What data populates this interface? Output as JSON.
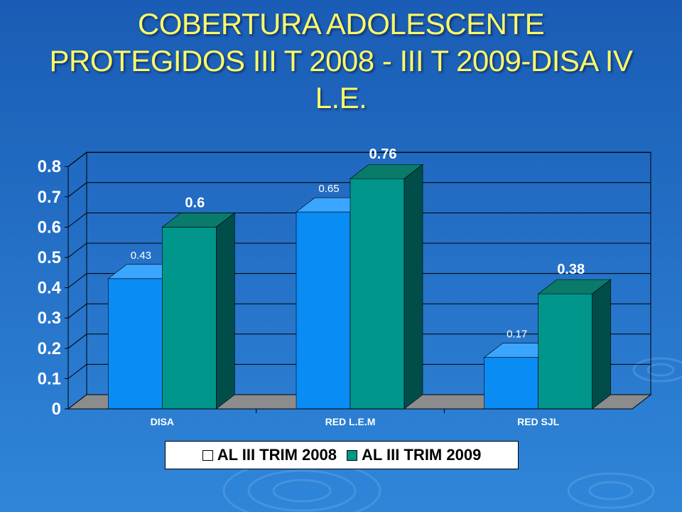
{
  "slide": {
    "title": "COBERTURA ADOLESCENTE PROTEGIDOS III T 2008 - III T 2009-DISA IV L.E."
  },
  "colors": {
    "background_top": "#1a5cb5",
    "background_bottom": "#2f86d9",
    "title": "#fbfb66",
    "series_2008_front": "#0a8cf5",
    "series_2008_top": "#3aa6ff",
    "series_2008_side": "#0662b0",
    "series_2009_front": "#00968c",
    "series_2009_top": "#0a7a6a",
    "series_2009_side": "#004d4a",
    "floor": "#8c8c8c"
  },
  "chart_data": {
    "type": "bar",
    "style": "3d-clustered-column",
    "categories": [
      "DISA",
      "RED L.E.M",
      "RED SJL"
    ],
    "series": [
      {
        "name": "AL III TRIM 2008",
        "values": [
          0.43,
          0.65,
          0.17
        ],
        "labels": [
          "0.43",
          "0.65",
          "0.17"
        ]
      },
      {
        "name": "AL III TRIM 2009",
        "values": [
          0.6,
          0.76,
          0.38
        ],
        "labels": [
          "0.6",
          "0.76",
          "0.38"
        ]
      }
    ],
    "ylim": [
      0,
      0.8
    ],
    "yticks": [
      "0",
      "0.1",
      "0.2",
      "0.3",
      "0.4",
      "0.5",
      "0.6",
      "0.7",
      "0.8"
    ],
    "grid": true,
    "legend_position": "bottom"
  }
}
